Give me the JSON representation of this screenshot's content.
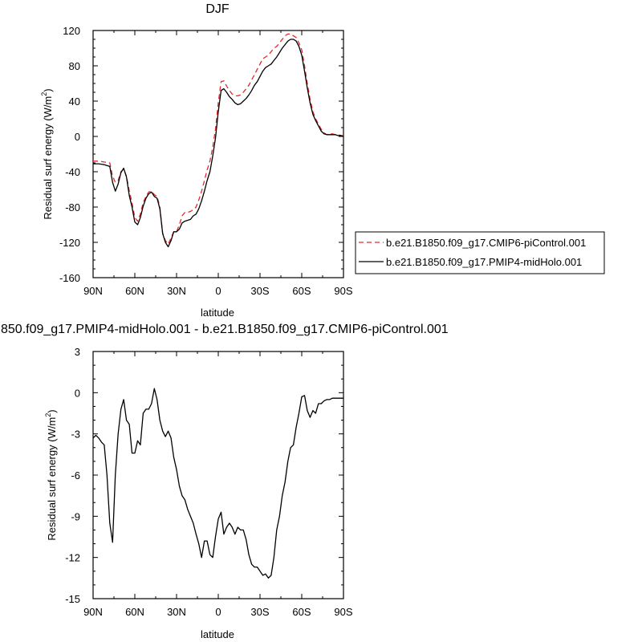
{
  "chart_data": [
    {
      "type": "line",
      "title": "DJF",
      "xlabel": "latitude",
      "ylabel": "Residual surf energy (W/m",
      "ylabel_sup": "2",
      "ylabel_close": ")",
      "xlim": [
        90,
        -90
      ],
      "ylim": [
        -160,
        120
      ],
      "x_ticks": [
        90,
        60,
        30,
        0,
        -30,
        -60,
        -90
      ],
      "x_tick_labels": [
        "90N",
        "60N",
        "30N",
        "0",
        "30S",
        "60S",
        "90S"
      ],
      "y_ticks": [
        120,
        80,
        40,
        0,
        -40,
        -80,
        -120,
        -160
      ],
      "y_tick_labels": [
        "120",
        "80",
        "40",
        "0",
        "-40",
        "-80",
        "-120",
        "-160"
      ],
      "legend_position": "right",
      "colors": {
        "cmip6": "#e8262b",
        "midholo": "#000000"
      },
      "x": [
        90,
        86,
        82,
        78,
        76,
        74,
        72,
        70,
        68,
        66,
        64,
        62,
        60,
        58,
        56,
        54,
        52,
        50,
        48,
        46,
        44,
        42,
        40,
        38,
        36,
        34,
        32,
        30,
        28,
        26,
        24,
        22,
        20,
        18,
        16,
        14,
        12,
        10,
        8,
        6,
        4,
        2,
        0,
        -2,
        -4,
        -6,
        -8,
        -10,
        -12,
        -14,
        -16,
        -18,
        -20,
        -22,
        -24,
        -26,
        -28,
        -30,
        -32,
        -34,
        -36,
        -38,
        -40,
        -42,
        -44,
        -46,
        -48,
        -50,
        -52,
        -54,
        -56,
        -58,
        -60,
        -62,
        -64,
        -66,
        -68,
        -70,
        -72,
        -74,
        -76,
        -78,
        -80,
        -82,
        -84,
        -86,
        -88,
        -90
      ],
      "series": [
        {
          "name": "b.e21.B1850.f09_g17.CMIP6-piControl.001",
          "style": "dashed",
          "values": [
            -28,
            -28,
            -29,
            -30,
            -45,
            -52,
            -50,
            -40,
            -37,
            -45,
            -62,
            -75,
            -92,
            -96,
            -88,
            -75,
            -68,
            -63,
            -62,
            -66,
            -68,
            -80,
            -110,
            -118,
            -122,
            -115,
            -108,
            -108,
            -100,
            -90,
            -86,
            -86,
            -85,
            -83,
            -80,
            -72,
            -62,
            -50,
            -38,
            -28,
            -12,
            8,
            38,
            62,
            63,
            57,
            52,
            48,
            46,
            46,
            47,
            50,
            54,
            58,
            64,
            70,
            76,
            82,
            88,
            90,
            92,
            96,
            100,
            102,
            106,
            110,
            114,
            116,
            116,
            114,
            112,
            106,
            98,
            80,
            60,
            42,
            28,
            20,
            14,
            8,
            4,
            2,
            3,
            3,
            2,
            2,
            1,
            1
          ]
        },
        {
          "name": "b.e21.B1850.f09_g17.PMIP4-midHolo.001",
          "style": "solid",
          "values": [
            -31,
            -31,
            -32,
            -34,
            -52,
            -62,
            -54,
            -41,
            -36,
            -46,
            -67,
            -80,
            -97,
            -100,
            -92,
            -79,
            -70,
            -65,
            -63,
            -68,
            -70,
            -82,
            -110,
            -120,
            -125,
            -118,
            -108,
            -108,
            -105,
            -98,
            -96,
            -95,
            -94,
            -90,
            -88,
            -82,
            -73,
            -62,
            -50,
            -40,
            -22,
            -2,
            28,
            52,
            54,
            50,
            45,
            42,
            38,
            36,
            37,
            40,
            43,
            47,
            52,
            58,
            62,
            68,
            74,
            78,
            80,
            82,
            86,
            90,
            95,
            100,
            104,
            108,
            110,
            110,
            108,
            102,
            92,
            74,
            55,
            38,
            25,
            18,
            12,
            6,
            3,
            2,
            2,
            2,
            2,
            1,
            1,
            0
          ]
        }
      ]
    },
    {
      "type": "line",
      "title": "850.f09_g17.PMIP4-midHolo.001 - b.e21.B1850.f09_g17.CMIP6-piControl.001",
      "xlabel": "latitude",
      "ylabel": "Residual surf energy (W/m",
      "ylabel_sup": "2",
      "ylabel_close": ")",
      "xlim": [
        90,
        -90
      ],
      "ylim": [
        -15,
        3
      ],
      "x_ticks": [
        90,
        60,
        30,
        0,
        -30,
        -60,
        -90
      ],
      "x_tick_labels": [
        "90N",
        "60N",
        "30N",
        "0",
        "30S",
        "60S",
        "90S"
      ],
      "y_ticks": [
        3,
        0,
        -3,
        -6,
        -9,
        -12,
        -15
      ],
      "y_tick_labels": [
        "3",
        "0",
        "-3",
        "-6",
        "-9",
        "-12",
        "-15"
      ],
      "colors": {
        "diff": "#000000"
      },
      "x": [
        90,
        88,
        86,
        84,
        82,
        80,
        78,
        76,
        74,
        72,
        70,
        68,
        66,
        64,
        62,
        60,
        58,
        56,
        54,
        52,
        50,
        48,
        46,
        44,
        42,
        40,
        38,
        36,
        34,
        32,
        30,
        28,
        26,
        24,
        22,
        20,
        18,
        16,
        14,
        12,
        10,
        8,
        6,
        4,
        2,
        0,
        -2,
        -4,
        -6,
        -8,
        -10,
        -12,
        -14,
        -16,
        -18,
        -20,
        -22,
        -24,
        -26,
        -28,
        -30,
        -32,
        -34,
        -36,
        -38,
        -40,
        -42,
        -44,
        -46,
        -48,
        -50,
        -52,
        -54,
        -56,
        -58,
        -60,
        -62,
        -64,
        -66,
        -68,
        -70,
        -72,
        -74,
        -76,
        -78,
        -80,
        -82,
        -84,
        -86,
        -88,
        -90
      ],
      "series": [
        {
          "name": "",
          "values": [
            -3.3,
            -3.1,
            -3.3,
            -3.6,
            -3.8,
            -6.0,
            -9.5,
            -10.9,
            -6.0,
            -3.0,
            -1.2,
            -0.5,
            -2.0,
            -2.3,
            -4.4,
            -4.4,
            -3.5,
            -3.8,
            -1.5,
            -1.2,
            -1.2,
            -0.8,
            0.3,
            -0.5,
            -2.0,
            -2.8,
            -3.2,
            -2.8,
            -3.3,
            -4.7,
            -5.6,
            -6.8,
            -7.5,
            -7.8,
            -8.5,
            -9.0,
            -9.5,
            -10.3,
            -11.0,
            -12.0,
            -10.8,
            -10.8,
            -11.8,
            -12.0,
            -10.5,
            -9.2,
            -8.7,
            -10.3,
            -9.8,
            -9.5,
            -9.8,
            -10.3,
            -9.8,
            -10.0,
            -10.0,
            -10.7,
            -11.8,
            -12.5,
            -12.7,
            -12.7,
            -13.0,
            -13.3,
            -13.2,
            -13.5,
            -13.3,
            -12.0,
            -10.0,
            -9.0,
            -7.5,
            -6.5,
            -5.0,
            -4.0,
            -3.8,
            -2.5,
            -1.5,
            -0.3,
            -0.2,
            -1.3,
            -1.8,
            -1.3,
            -1.5,
            -0.8,
            -0.8,
            -0.6,
            -0.5,
            -0.5,
            -0.4,
            -0.4,
            -0.4,
            -0.4,
            -0.4
          ]
        }
      ]
    }
  ]
}
